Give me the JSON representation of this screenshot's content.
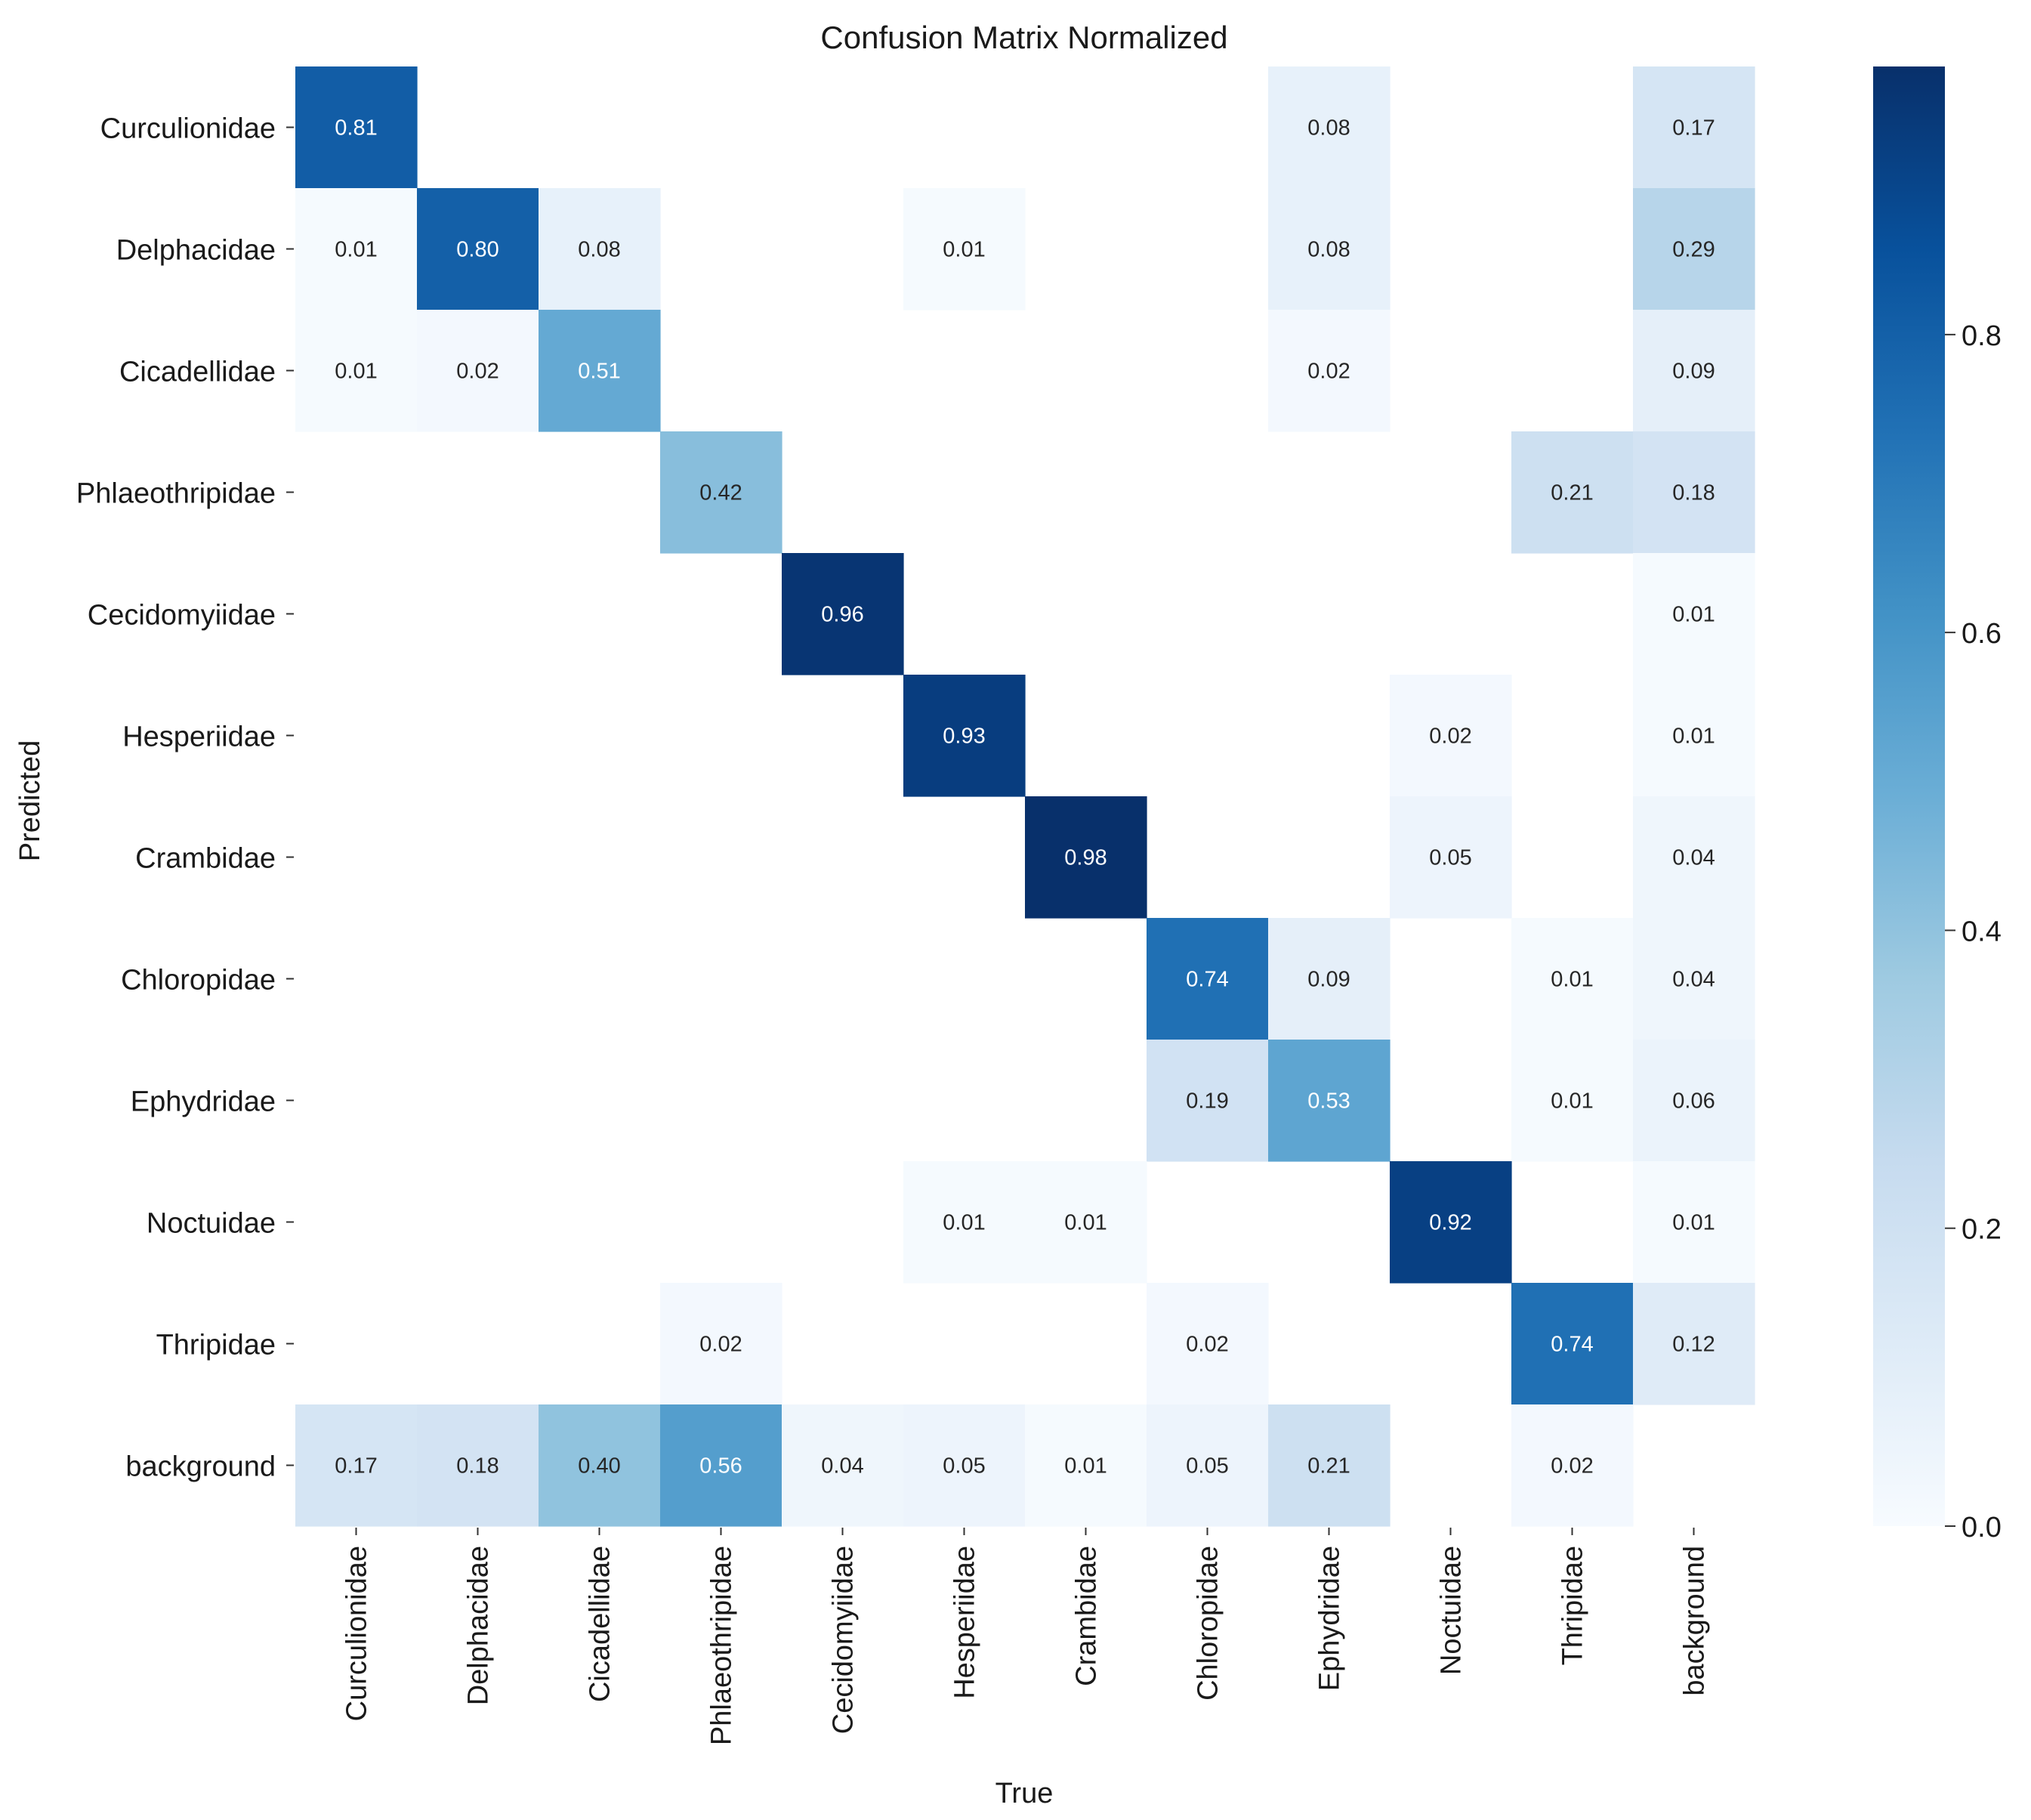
{
  "chart_data": {
    "type": "heatmap",
    "title": "Confusion Matrix Normalized",
    "xlabel": "True",
    "ylabel": "Predicted",
    "row_labels": [
      "Curculionidae",
      "Delphacidae",
      "Cicadellidae",
      "Phlaeothripidae",
      "Cecidomyiidae",
      "Hesperiidae",
      "Crambidae",
      "Chloropidae",
      "Ephydridae",
      "Noctuidae",
      "Thripidae",
      "background"
    ],
    "col_labels": [
      "Curculionidae",
      "Delphacidae",
      "Cicadellidae",
      "Phlaeothripidae",
      "Cecidomyiidae",
      "Hesperiidae",
      "Crambidae",
      "Chloropidae",
      "Ephydridae",
      "Noctuidae",
      "Thripidae",
      "background"
    ],
    "values": [
      [
        0.81,
        null,
        null,
        null,
        null,
        null,
        null,
        null,
        0.08,
        null,
        null,
        0.17
      ],
      [
        0.01,
        0.8,
        0.08,
        null,
        null,
        0.01,
        null,
        null,
        0.08,
        null,
        null,
        0.29
      ],
      [
        0.01,
        0.02,
        0.51,
        null,
        null,
        null,
        null,
        null,
        0.02,
        null,
        null,
        0.09
      ],
      [
        null,
        null,
        null,
        0.42,
        null,
        null,
        null,
        null,
        null,
        null,
        0.21,
        0.18
      ],
      [
        null,
        null,
        null,
        null,
        0.96,
        null,
        null,
        null,
        null,
        null,
        null,
        0.01
      ],
      [
        null,
        null,
        null,
        null,
        null,
        0.93,
        null,
        null,
        null,
        0.02,
        null,
        0.01
      ],
      [
        null,
        null,
        null,
        null,
        null,
        null,
        0.98,
        null,
        null,
        0.05,
        null,
        0.04
      ],
      [
        null,
        null,
        null,
        null,
        null,
        null,
        null,
        0.74,
        0.09,
        null,
        0.01,
        0.04
      ],
      [
        null,
        null,
        null,
        null,
        null,
        null,
        null,
        0.19,
        0.53,
        null,
        0.01,
        0.06
      ],
      [
        null,
        null,
        null,
        null,
        null,
        0.01,
        0.01,
        null,
        null,
        0.92,
        null,
        0.01
      ],
      [
        null,
        null,
        null,
        0.02,
        null,
        null,
        null,
        0.02,
        null,
        null,
        0.74,
        0.12
      ],
      [
        0.17,
        0.18,
        0.4,
        0.56,
        0.04,
        0.05,
        0.01,
        0.05,
        0.21,
        null,
        0.02,
        null
      ]
    ],
    "colormap": "Blues",
    "vmin": 0.0,
    "vmax": 0.98,
    "colorbar_ticks": [
      0.0,
      0.2,
      0.4,
      0.6,
      0.8
    ],
    "colorbar_tick_labels": [
      "0.0",
      "0.2",
      "0.4",
      "0.6",
      "0.8"
    ]
  }
}
